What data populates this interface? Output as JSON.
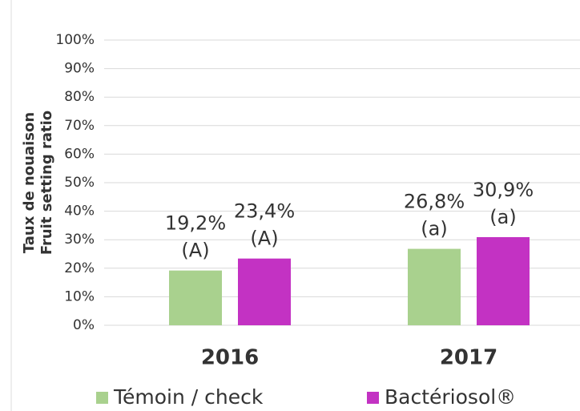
{
  "chart_data": {
    "type": "bar",
    "ylabel": [
      "Taux de nouaison",
      "Fruit setting ratio"
    ],
    "categories": [
      "2016",
      "2017"
    ],
    "series": [
      {
        "name": "Témoin / check",
        "color": "#a9d18e",
        "values": [
          19.2,
          26.8
        ],
        "value_labels": [
          "19,2%",
          "26,8%"
        ],
        "significance": [
          "(A)",
          "(a)"
        ]
      },
      {
        "name": "Bactériosol®",
        "color": "#c332c3",
        "values": [
          23.4,
          30.9
        ],
        "value_labels": [
          "23,4%",
          "30,9%"
        ],
        "significance": [
          "(A)",
          "(a)"
        ]
      }
    ],
    "ylim": [
      0,
      100
    ],
    "yticks": [
      {
        "value": 0,
        "label": "0%"
      },
      {
        "value": 10,
        "label": "10%"
      },
      {
        "value": 20,
        "label": "20%"
      },
      {
        "value": 30,
        "label": "30%"
      },
      {
        "value": 40,
        "label": "40%"
      },
      {
        "value": 50,
        "label": "50%"
      },
      {
        "value": 60,
        "label": "60%"
      },
      {
        "value": 70,
        "label": "70%"
      },
      {
        "value": 80,
        "label": "80%"
      },
      {
        "value": 90,
        "label": "90%"
      },
      {
        "value": 100,
        "label": "100%"
      }
    ],
    "grid": true,
    "legend": "bottom"
  }
}
